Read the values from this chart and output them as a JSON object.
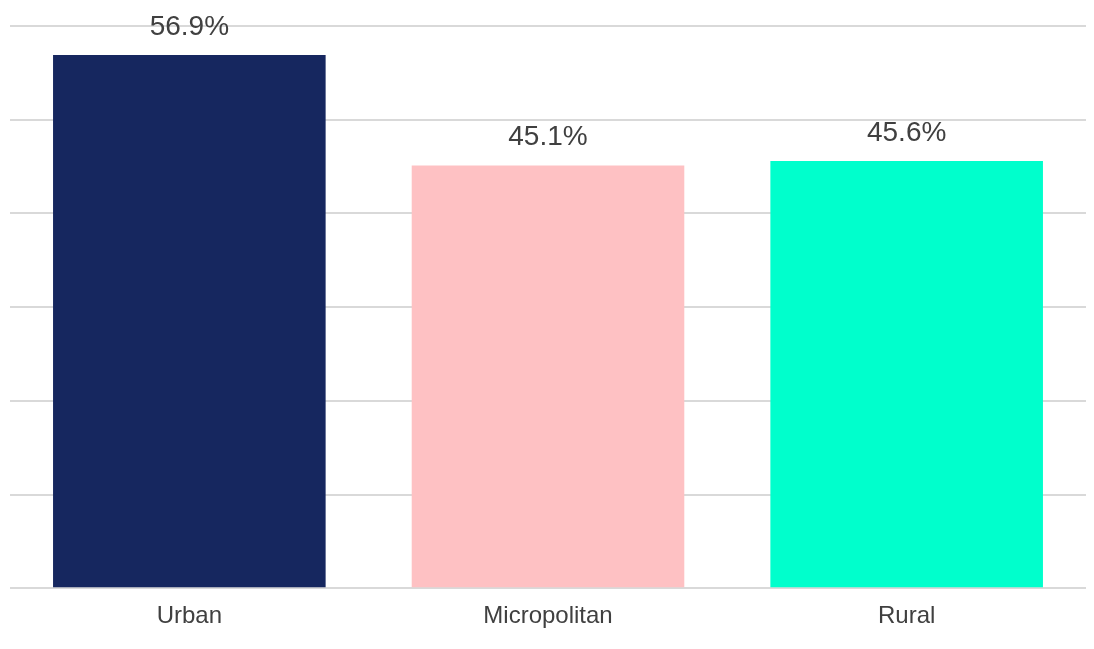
{
  "chart_data": {
    "type": "bar",
    "categories": [
      "Urban",
      "Micropolitan",
      "Rural"
    ],
    "values": [
      56.9,
      45.1,
      45.6
    ],
    "colors": [
      "#16275f",
      "#fec1c3",
      "#00ffcc"
    ],
    "value_labels": [
      "56.9%",
      "45.1%",
      "45.6%"
    ],
    "ylim": [
      0,
      60
    ],
    "yticks": [
      {
        "value": 0,
        "label": null
      },
      {
        "value": 10,
        "label": null
      },
      {
        "value": 20,
        "label": null
      },
      {
        "value": 30,
        "label": null
      },
      {
        "value": 40,
        "label": null
      },
      {
        "value": 50,
        "label": null
      },
      {
        "value": 60,
        "label": null
      }
    ],
    "grid": "y",
    "tick_labels": "x",
    "legend": false
  }
}
